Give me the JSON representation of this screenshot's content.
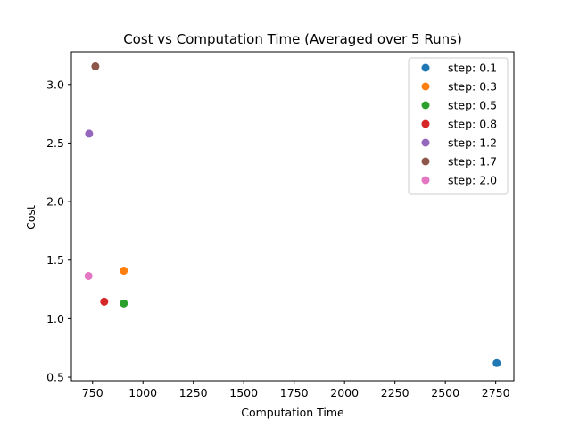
{
  "chart_data": {
    "type": "scatter",
    "title": "Cost vs Computation Time (Averaged over 5 Runs)",
    "xlabel": "Computation Time",
    "ylabel": "Cost",
    "xlim": [
      645,
      2840
    ],
    "ylim": [
      0.47,
      3.28
    ],
    "x_ticks": [
      750,
      1000,
      1250,
      1500,
      1750,
      2000,
      2250,
      2500,
      2750
    ],
    "y_ticks": [
      0.5,
      1.0,
      1.5,
      2.0,
      2.5,
      3.0
    ],
    "x_tick_labels": [
      "750",
      "1000",
      "1250",
      "1500",
      "1750",
      "2000",
      "2250",
      "2500",
      "2750"
    ],
    "y_tick_labels": [
      "0.5",
      "1.0",
      "1.5",
      "2.0",
      "2.5",
      "3.0"
    ],
    "grid": false,
    "legend_position": "top-right",
    "series": [
      {
        "name": "step: 0.1",
        "color": "#1f77b4",
        "x": [
          2755
        ],
        "y": [
          0.62
        ]
      },
      {
        "name": "step: 0.3",
        "color": "#ff7f0e",
        "x": [
          905
        ],
        "y": [
          1.41
        ]
      },
      {
        "name": "step: 0.5",
        "color": "#2ca02c",
        "x": [
          905
        ],
        "y": [
          1.13
        ]
      },
      {
        "name": "step: 0.8",
        "color": "#d62728",
        "x": [
          808
        ],
        "y": [
          1.145
        ]
      },
      {
        "name": "step: 1.2",
        "color": "#9467bd",
        "x": [
          733
        ],
        "y": [
          2.58
        ]
      },
      {
        "name": "step: 1.7",
        "color": "#8c564b",
        "x": [
          764
        ],
        "y": [
          3.155
        ]
      },
      {
        "name": "step: 2.0",
        "color": "#e377c2",
        "x": [
          730
        ],
        "y": [
          1.365
        ]
      }
    ]
  }
}
